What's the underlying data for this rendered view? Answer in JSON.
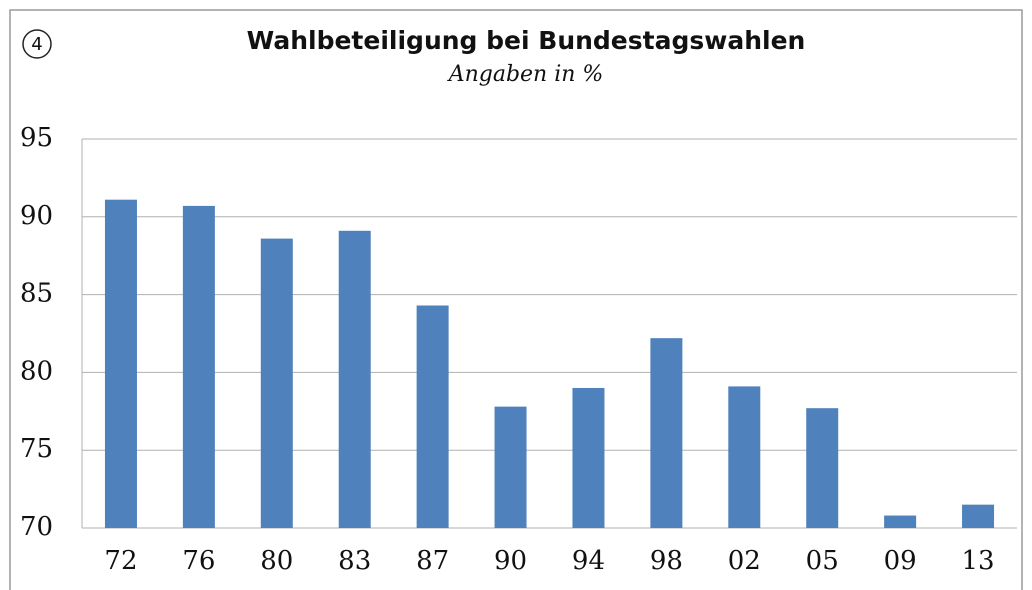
{
  "badge": "4",
  "chart_data": {
    "type": "bar",
    "title": "Wahlbeteiligung bei Bundestagswahlen",
    "subtitle": "Angaben in %",
    "categories": [
      "72",
      "76",
      "80",
      "83",
      "87",
      "90",
      "94",
      "98",
      "02",
      "05",
      "09",
      "13"
    ],
    "values": [
      91.1,
      90.7,
      88.6,
      89.1,
      84.3,
      77.8,
      79.0,
      82.2,
      79.1,
      77.7,
      70.8,
      71.5
    ],
    "color": "#4f81bd",
    "ylim": [
      70,
      95
    ],
    "yticks": [
      70,
      75,
      80,
      85,
      90,
      95
    ],
    "grid": true
  }
}
